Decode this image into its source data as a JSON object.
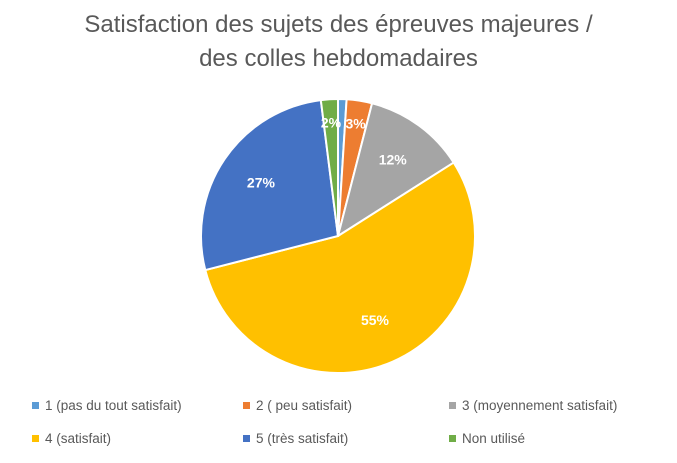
{
  "chart_data": {
    "type": "pie",
    "title_line1": "Satisfaction des sujets des épreuves majeures /",
    "title_line2": "des colles hebdomadaires",
    "categories": [
      "1 (pas du tout satisfait)",
      "2 ( peu satisfait)",
      "3 (moyennement satisfait)",
      "4 (satisfait)",
      "5 (très satisfait)",
      "Non utilisé"
    ],
    "values": [
      1,
      3,
      12,
      55,
      27,
      2
    ],
    "data_labels": [
      "",
      "3%",
      "12%",
      "55%",
      "27%",
      "2%"
    ],
    "colors": [
      "#5B9BD5",
      "#ED7D31",
      "#A5A5A5",
      "#FFC000",
      "#4472C4",
      "#70AD47"
    ],
    "legend_position": "bottom",
    "start_angle_deg": 0,
    "direction": "clockwise"
  }
}
